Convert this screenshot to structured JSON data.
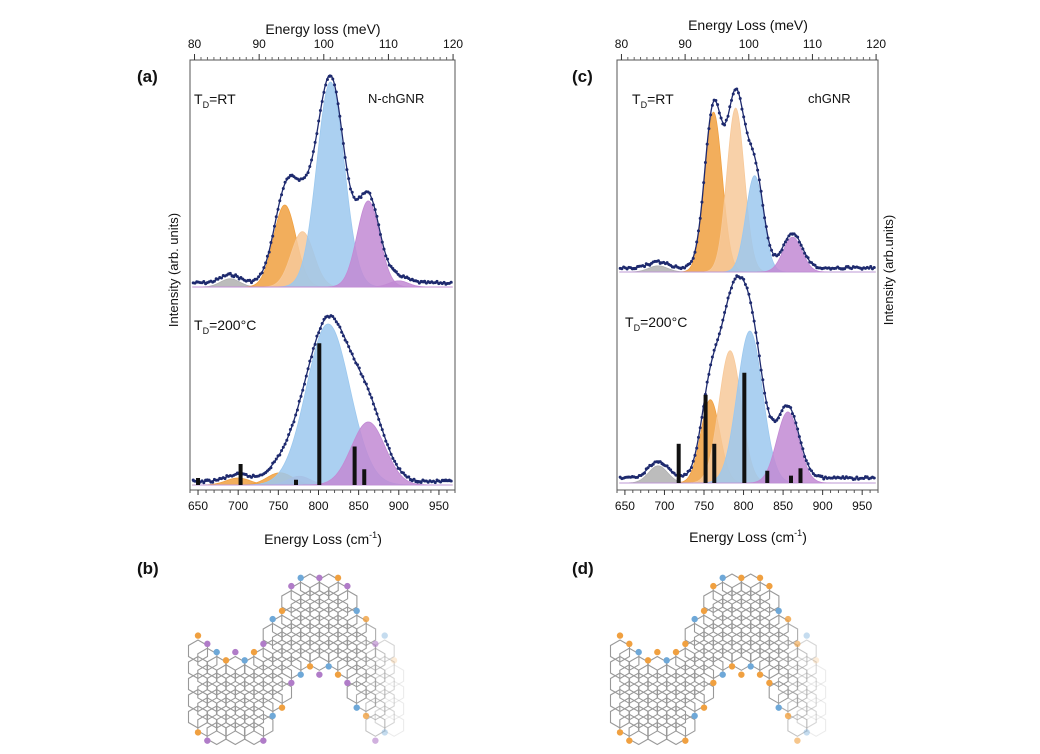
{
  "figure": {
    "panels": [
      {
        "label": "(a)",
        "sample": "N-chGNR"
      },
      {
        "label": "(b)"
      },
      {
        "label": "(c)",
        "sample": "chGNR"
      },
      {
        "label": "(d)"
      }
    ]
  },
  "axes": {
    "top_label_a": "Energy loss (meV)",
    "top_label_c": "Energy Loss (meV)",
    "bottom_label": "Energy Loss (cm",
    "bottom_label_sup": "-1",
    "bottom_label_close": ")",
    "left_ylabel": "Intensity (arb. units)",
    "right_ylabel": "Intensity (arb.units)",
    "td_rt": "T",
    "td_rt_sub": "D",
    "td_rt_val": "=RT",
    "td_200": "T",
    "td_200_sub": "D",
    "td_200_val": "=200°C"
  },
  "colors": {
    "orange": "#f0a040",
    "light_orange": "#f7c99a",
    "blue": "#9cc8ee",
    "purple": "#c28ad4",
    "gray": "#b0b0b0",
    "data": "#1e2a6e",
    "pink": "#e09ab0",
    "c_site": "#7a7a7a"
  },
  "chart_data": [
    {
      "panel": "(a)",
      "type": "line",
      "x_axis_bottom": {
        "label": "Energy Loss (cm-1)",
        "range": [
          640,
          970
        ],
        "ticks": [
          650,
          700,
          750,
          800,
          850,
          900,
          950
        ]
      },
      "x_axis_top": {
        "label": "Energy loss (meV)",
        "range": [
          79.3,
          120.3
        ],
        "ticks": [
          80,
          90,
          100,
          110,
          120
        ]
      },
      "ylabel": "Intensity (arb. units)",
      "spectra": [
        {
          "name": "T_D=RT",
          "peaks": [
            {
              "center": 690,
              "height": 0.04,
              "width": 12,
              "color": "gray"
            },
            {
              "center": 758,
              "height": 0.4,
              "width": 14,
              "color": "orange"
            },
            {
              "center": 780,
              "height": 0.27,
              "width": 14,
              "color": "light_orange"
            },
            {
              "center": 815,
              "height": 1.0,
              "width": 17,
              "color": "blue"
            },
            {
              "center": 862,
              "height": 0.42,
              "width": 14,
              "color": "purple"
            },
            {
              "center": 900,
              "height": 0.03,
              "width": 12,
              "color": "purple"
            }
          ]
        },
        {
          "name": "T_D=200°C",
          "peaks": [
            {
              "center": 700,
              "height": 0.04,
              "width": 15,
              "color": "orange"
            },
            {
              "center": 752,
              "height": 0.07,
              "width": 16,
              "color": "orange"
            },
            {
              "center": 776,
              "height": 0.05,
              "width": 14,
              "color": "pink"
            },
            {
              "center": 812,
              "height": 0.92,
              "width": 27,
              "color": "blue"
            },
            {
              "center": 862,
              "height": 0.36,
              "width": 21,
              "color": "purple"
            }
          ],
          "sticks": [
            {
              "x": 650,
              "h": 0.04
            },
            {
              "x": 703,
              "h": 0.12
            },
            {
              "x": 772,
              "h": 0.03
            },
            {
              "x": 801,
              "h": 0.81
            },
            {
              "x": 845,
              "h": 0.22
            },
            {
              "x": 857,
              "h": 0.09
            }
          ]
        }
      ]
    },
    {
      "panel": "(c)",
      "type": "line",
      "x_axis_bottom": {
        "label": "Energy Loss (cm-1)",
        "range": [
          640,
          970
        ],
        "ticks": [
          650,
          700,
          750,
          800,
          850,
          900,
          950
        ]
      },
      "x_axis_top": {
        "label": "Energy Loss (meV)",
        "range": [
          79.3,
          120.3
        ],
        "ticks": [
          80,
          90,
          100,
          110,
          120
        ]
      },
      "ylabel": "Intensity (arb.units)",
      "spectra": [
        {
          "name": "T_D=RT",
          "peaks": [
            {
              "center": 692,
              "height": 0.03,
              "width": 12,
              "color": "gray"
            },
            {
              "center": 762,
              "height": 0.78,
              "width": 11,
              "color": "orange"
            },
            {
              "center": 790,
              "height": 0.8,
              "width": 11,
              "color": "light_orange"
            },
            {
              "center": 814,
              "height": 0.47,
              "width": 11,
              "color": "blue"
            },
            {
              "center": 862,
              "height": 0.17,
              "width": 12,
              "color": "purple"
            }
          ]
        },
        {
          "name": "T_D=200°C",
          "peaks": [
            {
              "center": 692,
              "height": 0.07,
              "width": 12,
              "color": "gray"
            },
            {
              "center": 758,
              "height": 0.34,
              "width": 12,
              "color": "orange"
            },
            {
              "center": 783,
              "height": 0.54,
              "width": 14,
              "color": "light_orange"
            },
            {
              "center": 808,
              "height": 0.62,
              "width": 16,
              "color": "blue"
            },
            {
              "center": 856,
              "height": 0.29,
              "width": 14,
              "color": "purple"
            }
          ],
          "sticks": [
            {
              "x": 718,
              "h": 0.16
            },
            {
              "x": 752,
              "h": 0.36
            },
            {
              "x": 763,
              "h": 0.16
            },
            {
              "x": 801,
              "h": 0.45
            },
            {
              "x": 830,
              "h": 0.05
            },
            {
              "x": 860,
              "h": 0.03
            },
            {
              "x": 872,
              "h": 0.06
            }
          ]
        }
      ]
    }
  ]
}
